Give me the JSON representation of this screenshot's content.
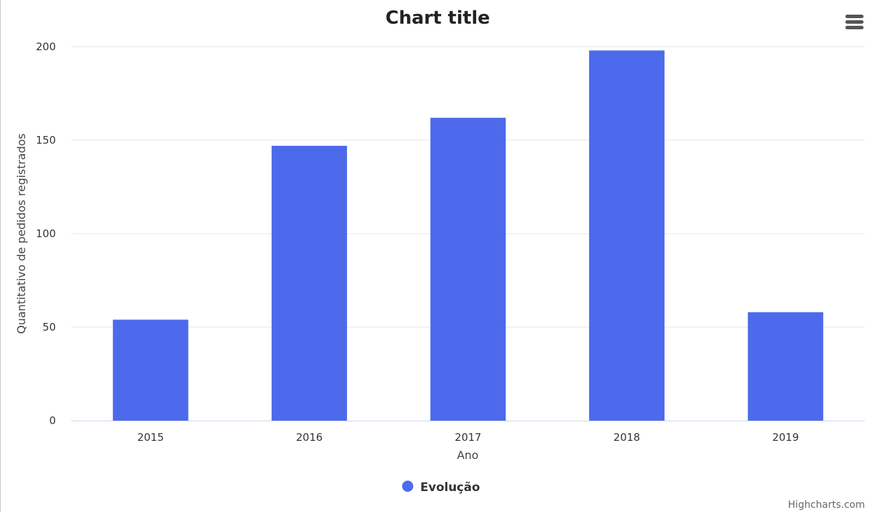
{
  "chart_data": {
    "type": "bar",
    "title": "Chart title",
    "xlabel": "Ano",
    "ylabel": "Quantitativo de pedidos registrados",
    "categories": [
      "2015",
      "2016",
      "2017",
      "2018",
      "2019"
    ],
    "series": [
      {
        "name": "Evolução",
        "color": "#4c6aeb",
        "values": [
          54,
          147,
          162,
          198,
          58
        ]
      }
    ],
    "ylim": [
      0,
      200
    ],
    "yticks": [
      "0",
      "50",
      "100",
      "150",
      "200"
    ],
    "grid": true,
    "legend": "bottom-center"
  },
  "credits": "Highcharts.com",
  "menu_icon": "hamburger-menu-icon",
  "colors": {
    "grid": "#e6e6e6",
    "axis": "#ccd6eb",
    "bar": "#4c6aeb"
  }
}
